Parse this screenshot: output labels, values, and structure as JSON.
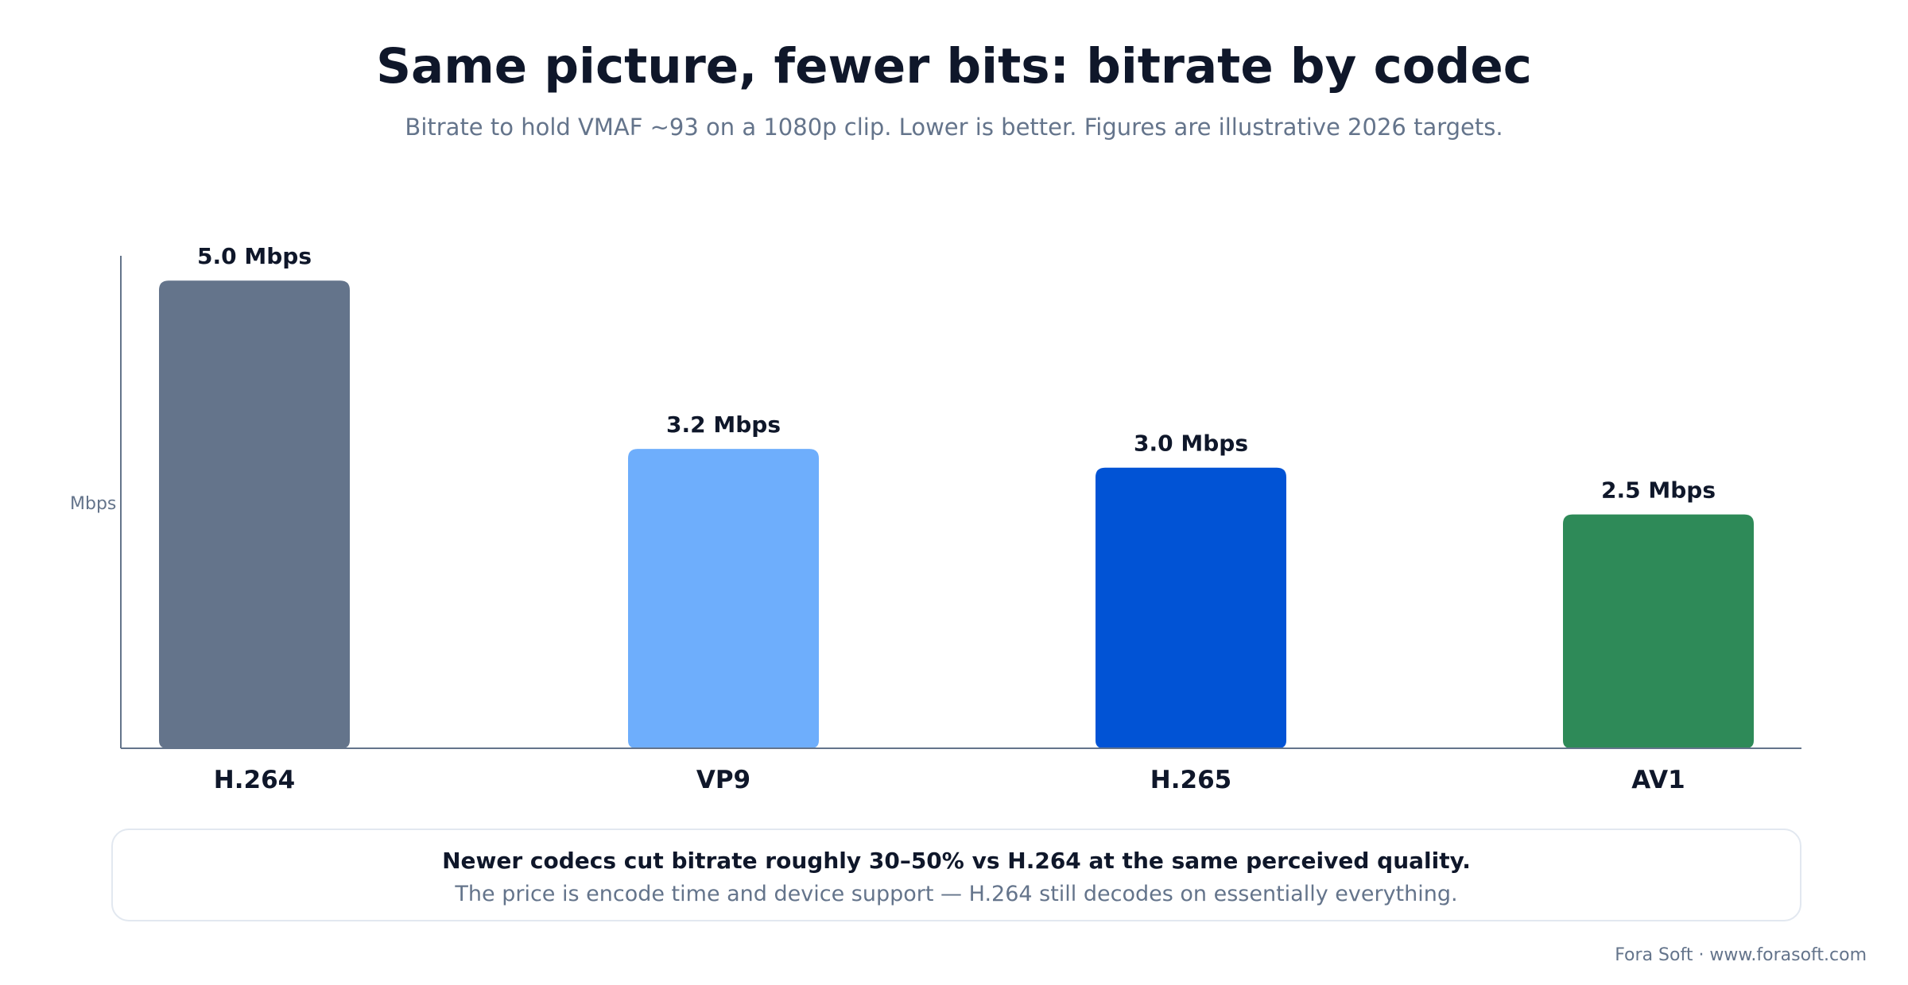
{
  "header": {
    "title": "Same picture, fewer bits: bitrate by codec",
    "subtitle": "Bitrate to hold VMAF ~93 on a 1080p clip. Lower is better. Figures are illustrative 2026 targets."
  },
  "chart_data": {
    "type": "bar",
    "title": "Same picture, fewer bits: bitrate by codec",
    "subtitle": "Bitrate to hold VMAF ~93 on a 1080p clip. Lower is better. Figures are illustrative 2026 targets.",
    "categories": [
      "H.264",
      "VP9",
      "H.265",
      "AV1"
    ],
    "values": [
      5.0,
      3.2,
      3.0,
      2.5
    ],
    "value_labels": [
      "5.0 Mbps",
      "3.2 Mbps",
      "3.0 Mbps",
      "2.5 Mbps"
    ],
    "colors": [
      "#64748b",
      "#6eaefc",
      "#0153d5",
      "#2e8a58"
    ],
    "xlabel": "",
    "ylabel": "Mbps",
    "ylim": [
      0,
      5.18
    ],
    "grid": false,
    "legend": "none"
  },
  "note": {
    "headline": "Newer codecs cut bitrate roughly 30–50% vs H.264 at the same perceived quality.",
    "detail": "The price is encode time and device support — H.264 still decodes on essentially everything."
  },
  "footer": {
    "credit": "Fora Soft · www.forasoft.com"
  },
  "colors": {
    "text_primary": "#0f172a",
    "text_muted": "#64748b",
    "axis": "#64748b",
    "box_border": "#e2e8f0"
  }
}
